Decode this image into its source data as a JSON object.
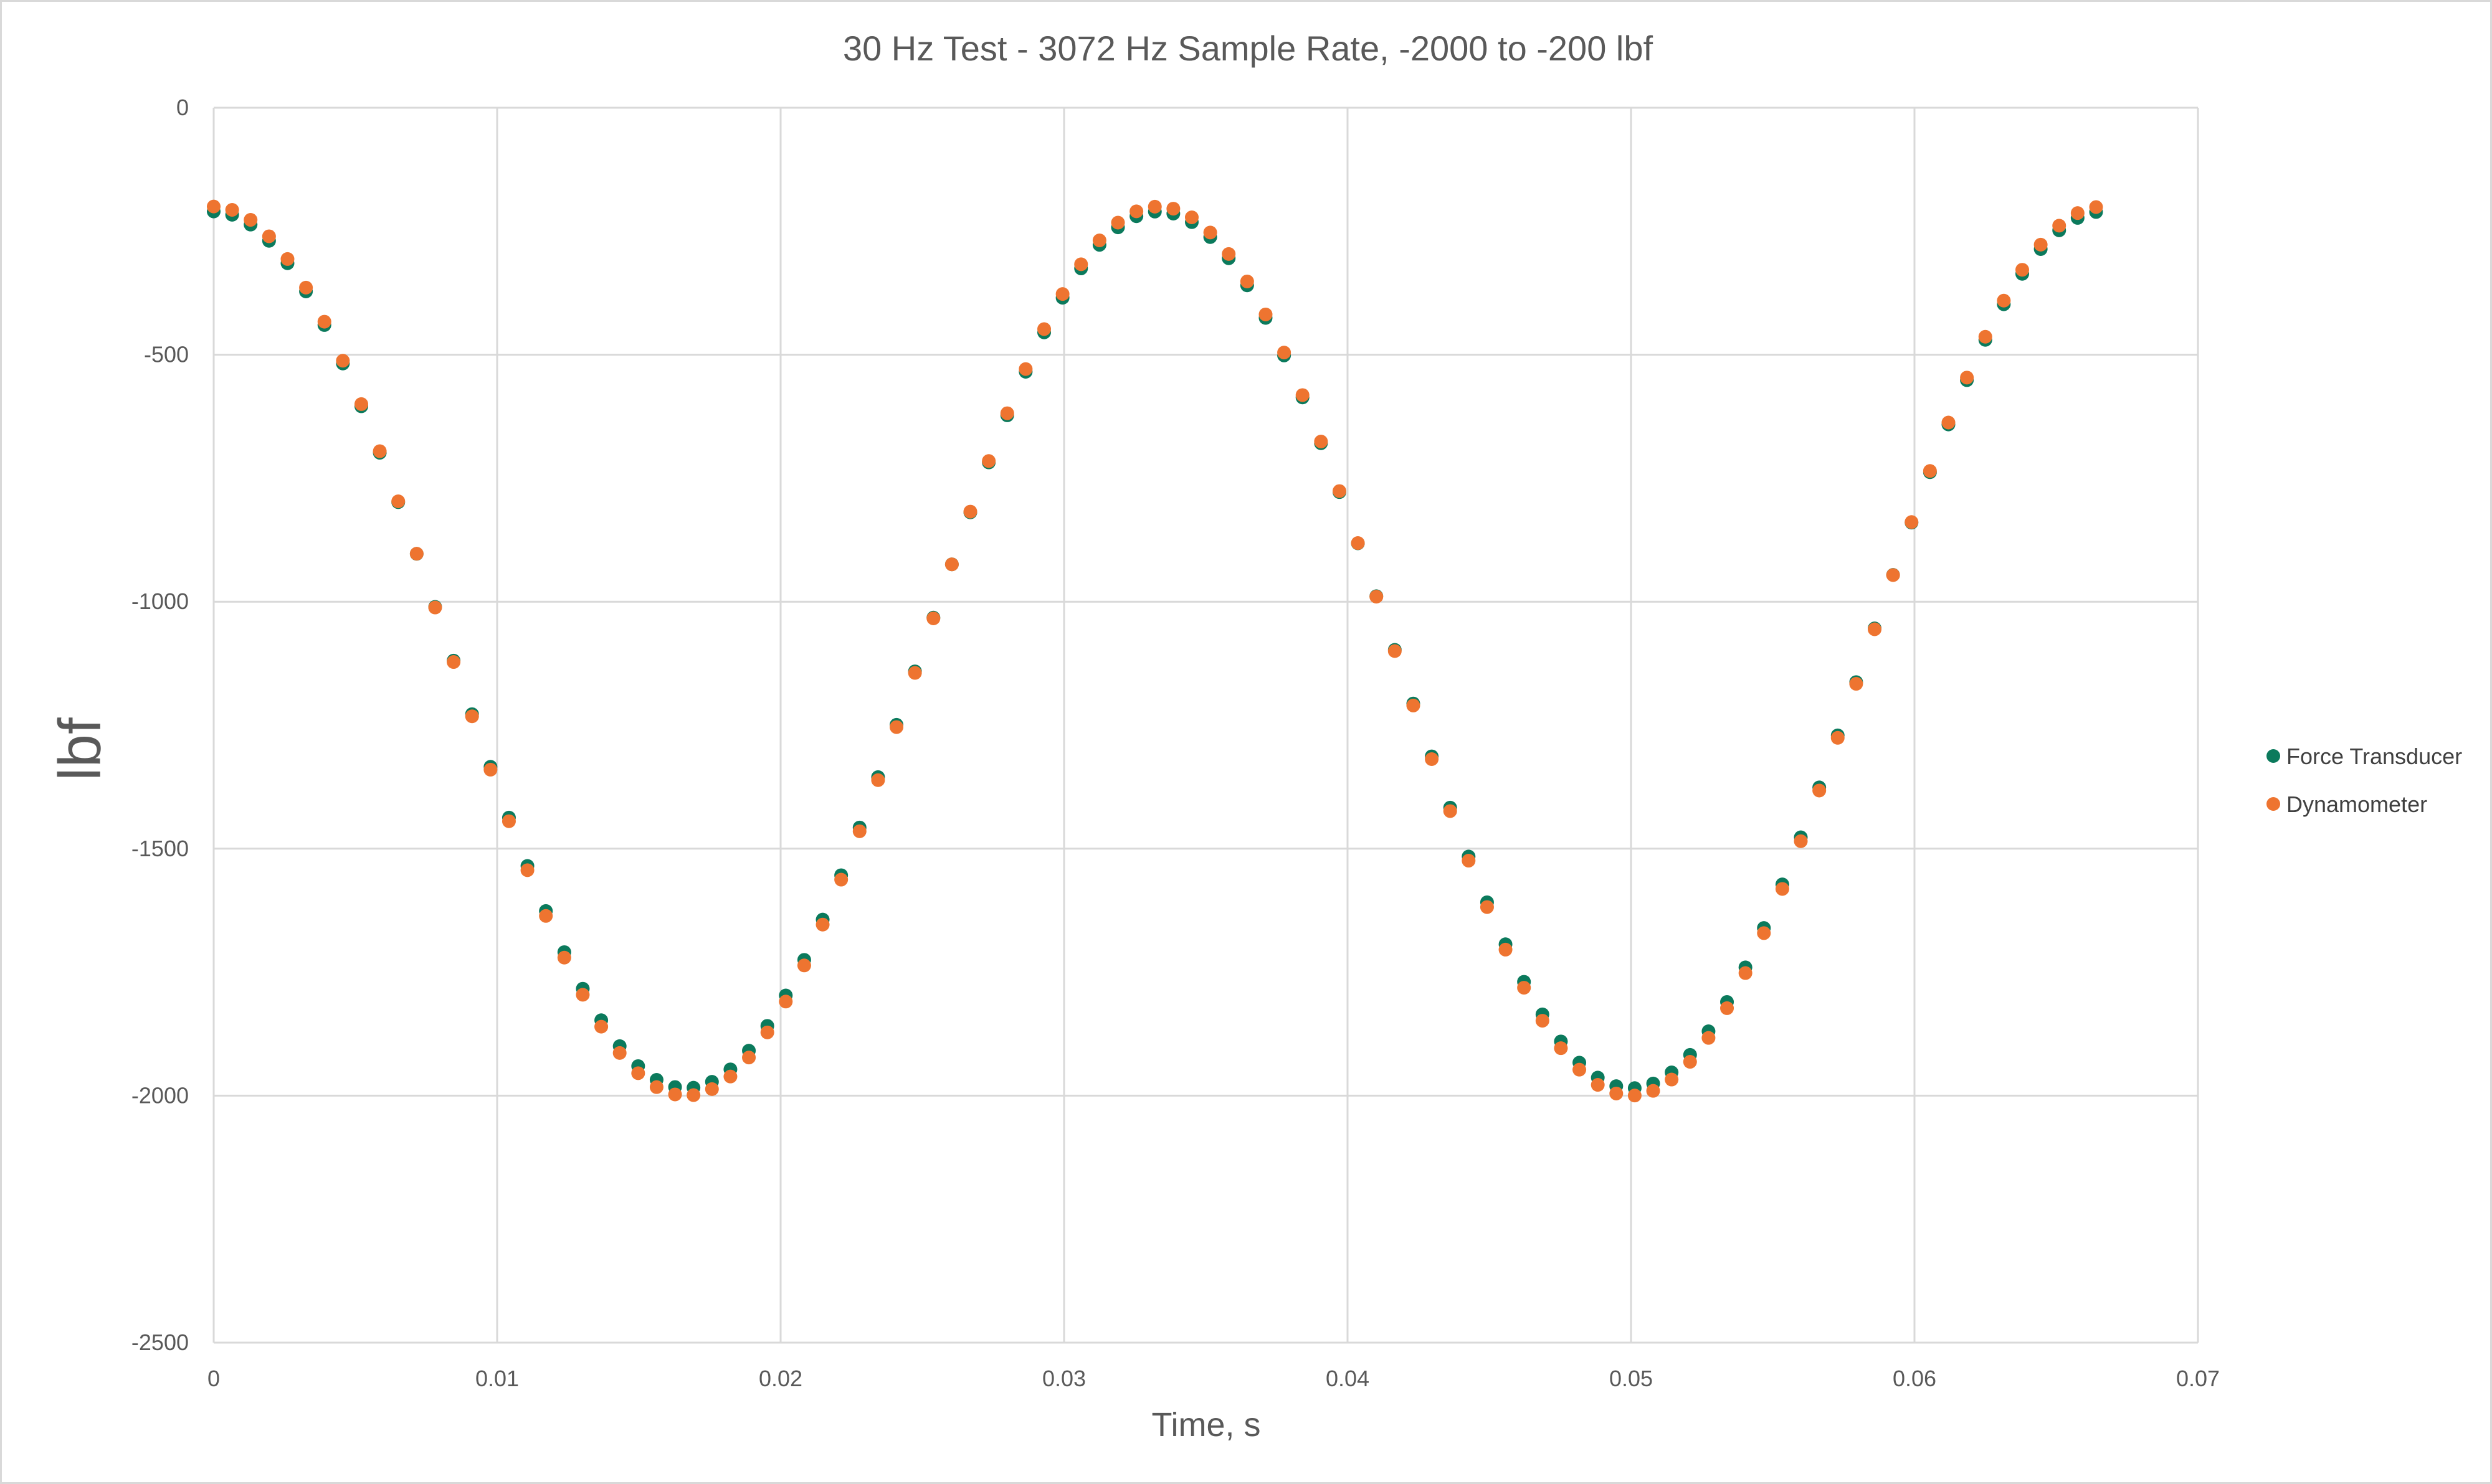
{
  "chart_data": {
    "type": "scatter",
    "title": "30 Hz Test - 3072 Hz Sample Rate, -2000 to -200 lbf",
    "xlabel": "Time, s",
    "ylabel": "lbf",
    "xlim": [
      0,
      0.07
    ],
    "ylim": [
      -2500,
      0
    ],
    "x_ticks": [
      "0",
      "0.01",
      "0.02",
      "0.03",
      "0.04",
      "0.05",
      "0.06",
      "0.07"
    ],
    "y_ticks": [
      "0",
      "-500",
      "-1000",
      "-1500",
      "-2000",
      "-2500"
    ],
    "grid": true,
    "legend_position": "right",
    "sample_rate_hz": 3072,
    "frequency_hz": 30,
    "series": [
      {
        "name": "Force Transducer",
        "color": "#0b7a5c",
        "mean": -1097.5,
        "amplitude": 887.5,
        "x_range": [
          0,
          0.0667
        ],
        "y_start": -210,
        "y_min": -1985,
        "y_max": -210
      },
      {
        "name": "Dynamometer",
        "color": "#ee7430",
        "mean": -1100,
        "amplitude": 900,
        "x_range": [
          0,
          0.0667
        ],
        "y_start": -200,
        "y_min": -2000,
        "y_max": -200
      }
    ]
  }
}
